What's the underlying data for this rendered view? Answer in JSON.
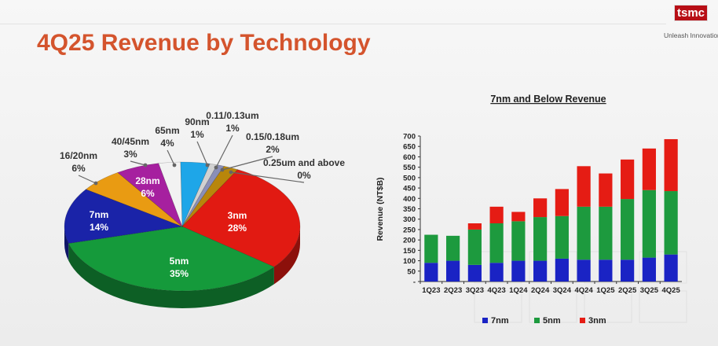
{
  "slide": {
    "title": "4Q25 Revenue by Technology"
  },
  "logo": {
    "mark": "tsmc",
    "tagline": "Unleash Innovation"
  },
  "chart_data": [
    {
      "type": "pie",
      "slices": [
        {
          "label": "3nm",
          "percent_label": "28%",
          "value": 28,
          "color": "#e11a12"
        },
        {
          "label": "5nm",
          "percent_label": "35%",
          "value": 35,
          "color": "#159a3b"
        },
        {
          "label": "7nm",
          "percent_label": "14%",
          "value": 14,
          "color": "#1a23a8"
        },
        {
          "label": "16/20nm",
          "percent_label": "6%",
          "value": 6,
          "color": "#e99b12"
        },
        {
          "label": "28nm",
          "percent_label": "6%",
          "value": 6,
          "color": "#a6209f"
        },
        {
          "label": "40/45nm",
          "percent_label": "3%",
          "value": 3,
          "color": "#f2f2f2"
        },
        {
          "label": "65nm",
          "percent_label": "4%",
          "value": 4,
          "color": "#1ea6e8"
        },
        {
          "label": "90nm",
          "percent_label": "1%",
          "value": 1,
          "color": "#d1d1d1"
        },
        {
          "label": "0.11/0.13um",
          "percent_label": "1%",
          "value": 1,
          "color": "#8a8fb8"
        },
        {
          "label": "0.15/0.18um",
          "percent_label": "2%",
          "value": 2,
          "color": "#b8860b"
        },
        {
          "label": "0.25um and above",
          "percent_label": "0%",
          "value": 0,
          "color": "#777777"
        }
      ]
    },
    {
      "type": "bar",
      "stacked": true,
      "title": "7nm and Below Revenue",
      "ylabel": "Revenue (NT$B)",
      "ylim": [
        0,
        700
      ],
      "yticks": [
        0,
        50,
        100,
        150,
        200,
        250,
        300,
        350,
        400,
        450,
        500,
        550,
        600,
        650,
        700
      ],
      "ytick_labels": [
        "-",
        "50",
        "100",
        "150",
        "200",
        "250",
        "300",
        "350",
        "400",
        "450",
        "500",
        "550",
        "600",
        "650",
        "700"
      ],
      "categories": [
        "1Q23",
        "2Q23",
        "3Q23",
        "4Q23",
        "1Q24",
        "2Q24",
        "3Q24",
        "4Q24",
        "1Q25",
        "2Q25",
        "3Q25",
        "4Q25"
      ],
      "series": [
        {
          "name": "7nm",
          "color": "#1a23c4",
          "values": [
            90,
            100,
            80,
            90,
            100,
            100,
            110,
            105,
            105,
            105,
            115,
            130
          ]
        },
        {
          "name": "5nm",
          "color": "#1d9a3e",
          "values": [
            135,
            120,
            170,
            190,
            190,
            210,
            205,
            255,
            255,
            292,
            325,
            305
          ]
        },
        {
          "name": "3nm",
          "color": "#e51c14",
          "values": [
            0,
            0,
            30,
            80,
            45,
            90,
            130,
            195,
            160,
            190,
            200,
            250
          ]
        }
      ],
      "legend": "bottom"
    }
  ]
}
